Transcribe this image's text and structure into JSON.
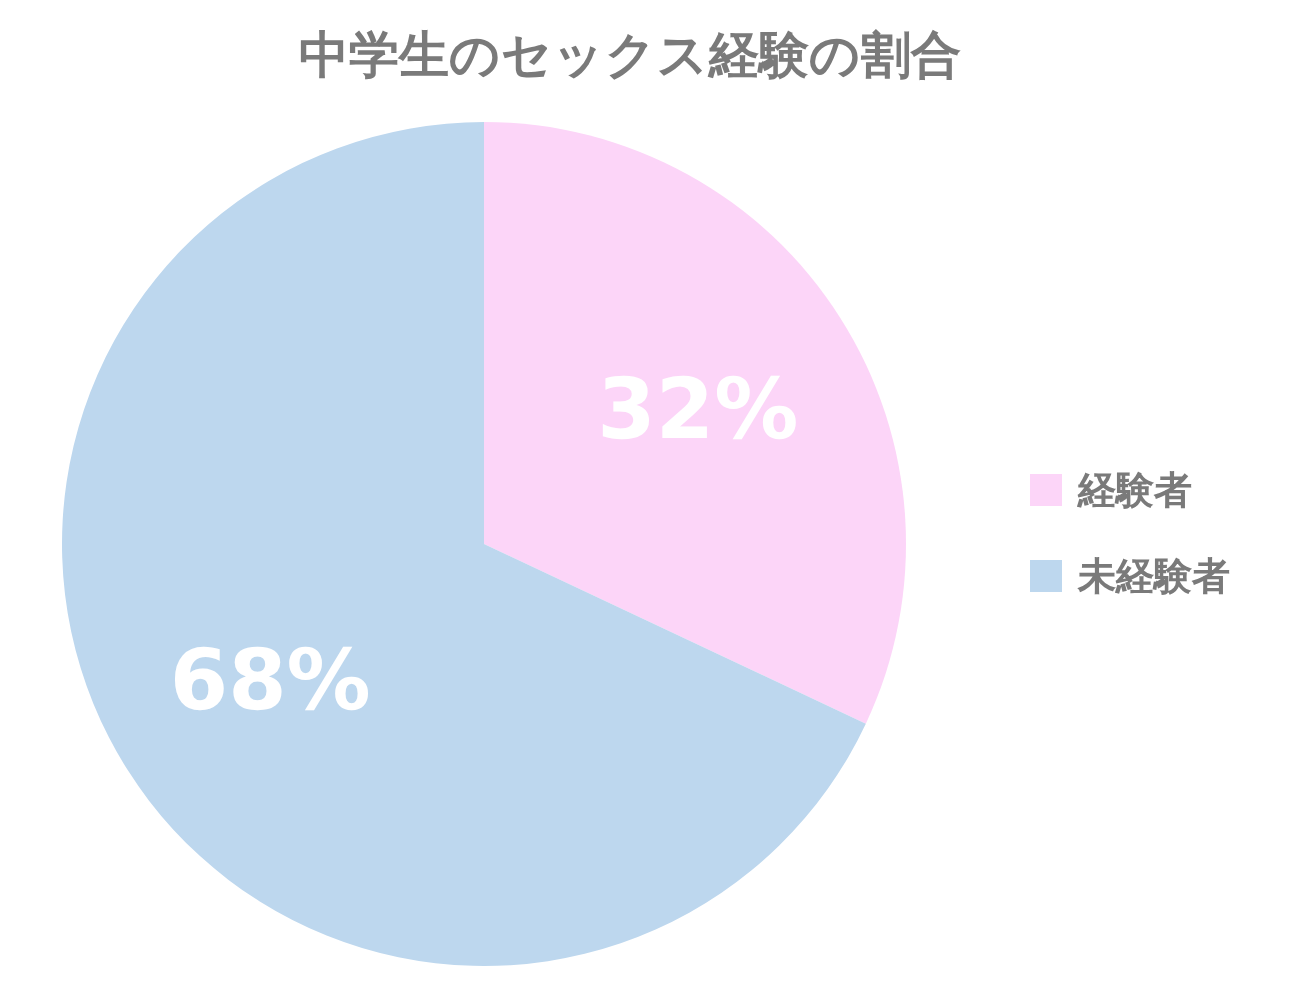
{
  "chart_data": {
    "type": "pie",
    "title": "中学生のセックス経験の割合",
    "categories": [
      "経験者",
      "未経験者"
    ],
    "values": [
      32,
      68
    ],
    "colors": [
      "#fcd5f8",
      "#bdd7ee"
    ],
    "value_labels": [
      "32%",
      "68%"
    ],
    "legend": "right"
  }
}
